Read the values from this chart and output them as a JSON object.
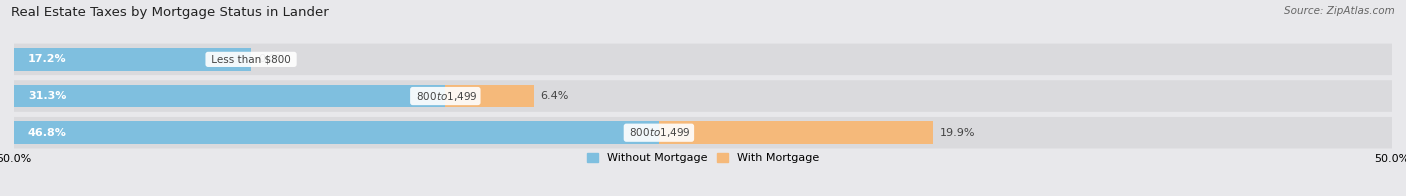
{
  "title": "Real Estate Taxes by Mortgage Status in Lander",
  "source": "Source: ZipAtlas.com",
  "bars": [
    {
      "label": "Less than $800",
      "without_mortgage": 17.2,
      "with_mortgage": 0.0
    },
    {
      "label": "$800 to $1,499",
      "without_mortgage": 31.3,
      "with_mortgage": 6.4
    },
    {
      "label": "$800 to $1,499",
      "without_mortgage": 46.8,
      "with_mortgage": 19.9
    }
  ],
  "xlim": [
    -50.0,
    50.0
  ],
  "color_without": "#7fbfdf",
  "color_with": "#f5b97a",
  "bg_color": "#e8e8eb",
  "row_bg_color": "#dadadd",
  "bar_height": 0.62,
  "title_fontsize": 9.5,
  "value_fontsize": 8,
  "label_fontsize": 7.5,
  "legend_fontsize": 8,
  "source_fontsize": 7.5,
  "text_color_dark": "#444444",
  "text_color_white": "#ffffff"
}
